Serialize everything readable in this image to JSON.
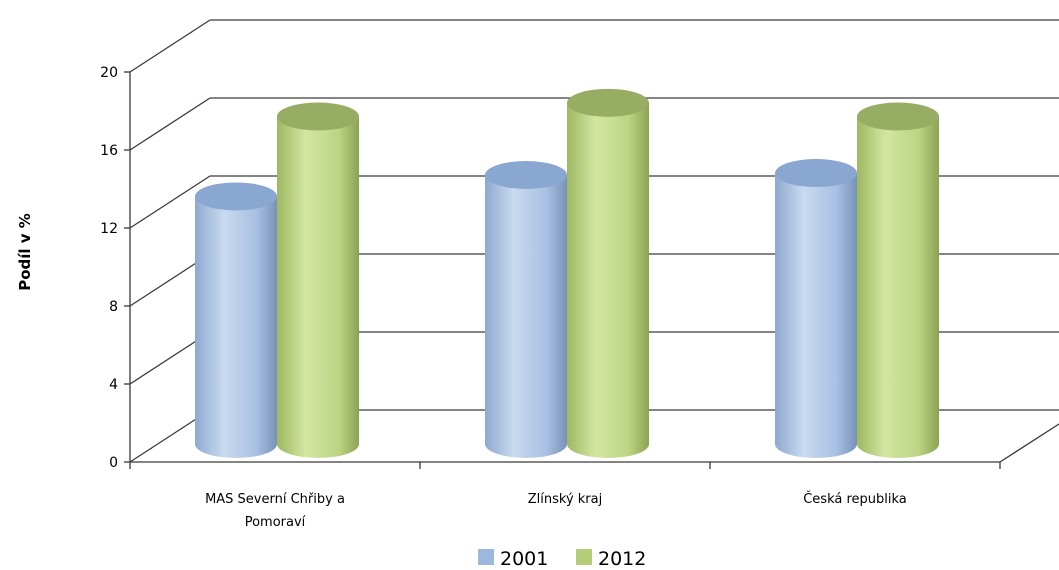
{
  "chart_data": {
    "type": "bar",
    "style": "3d-cylinder",
    "title": "",
    "xlabel": "",
    "ylabel": "Podíl v %",
    "ylim": [
      0,
      20
    ],
    "yticks": [
      "0",
      "4",
      "8",
      "12",
      "16",
      "20"
    ],
    "categories": [
      [
        "MAS Severní Chřiby a",
        "Pomoraví"
      ],
      [
        "Zlínský kraj"
      ],
      [
        "Česká republika"
      ]
    ],
    "series": [
      {
        "name": "2001",
        "values": [
          12.9,
          14.0,
          14.1
        ],
        "color": "#9db8dd"
      },
      {
        "name": "2012",
        "values": [
          17.0,
          17.7,
          17.0
        ],
        "color": "#b5cd79"
      }
    ],
    "grid": true,
    "legend": "bottom"
  }
}
